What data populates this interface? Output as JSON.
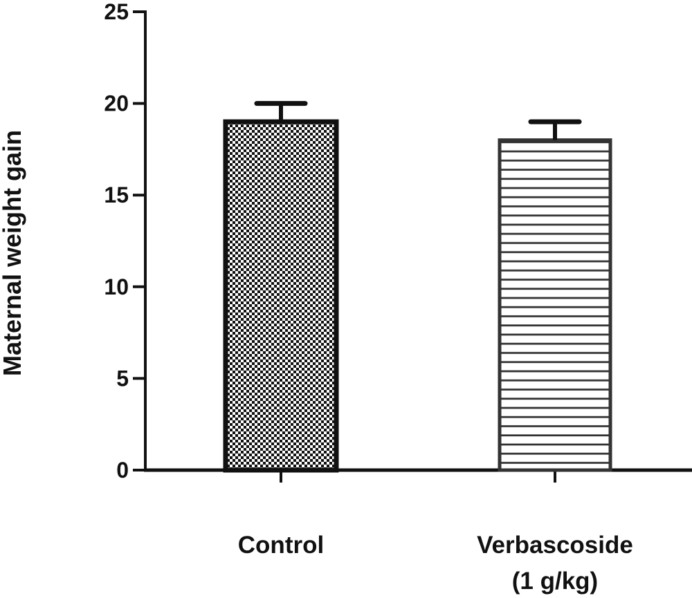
{
  "chart_data": {
    "type": "bar",
    "title": "",
    "xlabel": "",
    "ylabel": "Maternal weight gain",
    "ylim": [
      0,
      25
    ],
    "yticks": [
      0,
      5,
      10,
      15,
      20,
      25
    ],
    "ytick_labels": [
      "0",
      "5",
      "10",
      "15",
      "20",
      "25"
    ],
    "categories": [
      {
        "label_lines": [
          "Control"
        ],
        "name": "Control"
      },
      {
        "label_lines": [
          "Verbascoside",
          "(1 g/kg)"
        ],
        "name": "Verbascoside (1 g/kg)"
      }
    ],
    "values": [
      19.0,
      18.0
    ],
    "errors": [
      1.0,
      1.0
    ],
    "patterns": [
      "checkerboard",
      "horizontal-lines"
    ],
    "grid": false,
    "legend": "none"
  },
  "colors": {
    "axis": "#111111",
    "bar_outline_control": "#111111",
    "bar_outline_verbascoside": "#333333",
    "pattern_dark": "#111111",
    "pattern_light": "#ffffff"
  }
}
